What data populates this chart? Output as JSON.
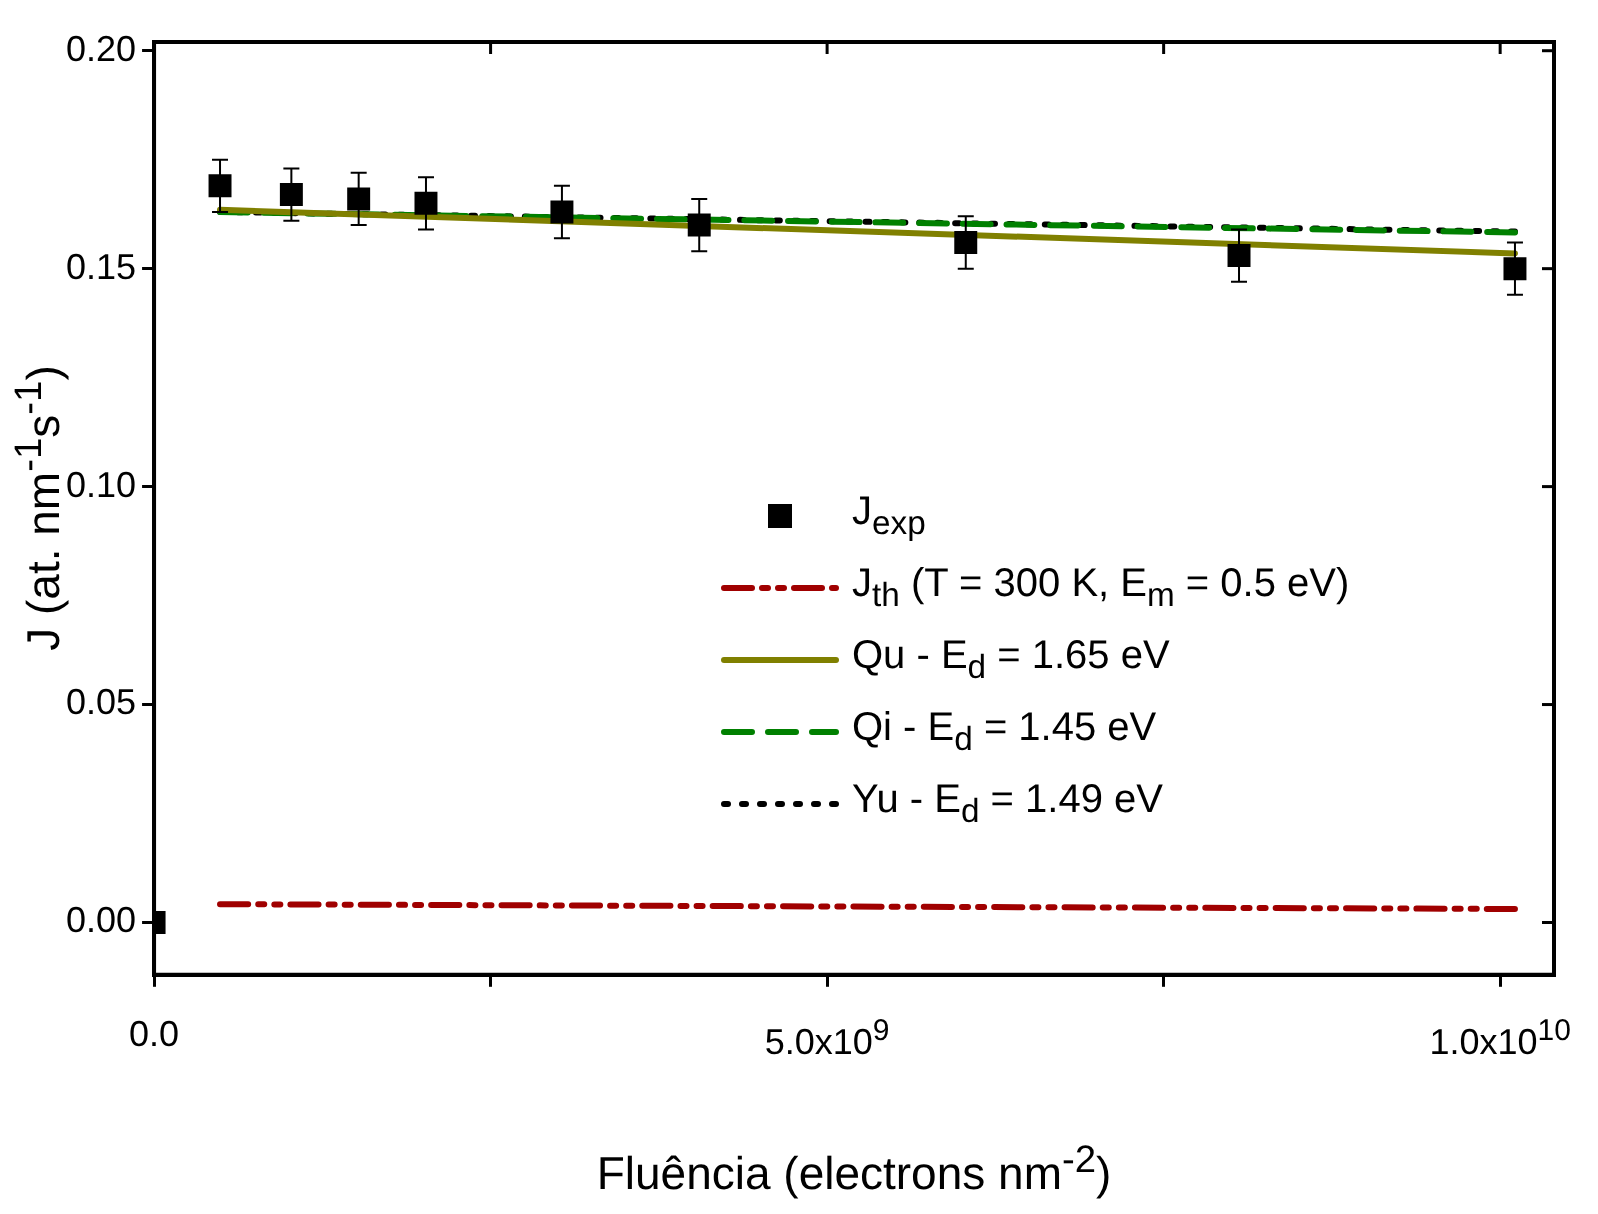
{
  "chart_data": {
    "type": "line",
    "xlabel": "Fluência (electrons nm$^{-2}$)",
    "ylabel": "J (at. nm$^{-1}$s$^{-1}$)",
    "xlim": [
      0,
      10400000000
    ],
    "ylim": [
      -0.012,
      0.202
    ],
    "xticks": [
      {
        "value": 0,
        "label": "0.0"
      },
      {
        "value": 2500000000,
        "label": null
      },
      {
        "value": 5000000000,
        "label": "5.0x10$^{9}$"
      },
      {
        "value": 7500000000,
        "label": null
      },
      {
        "value": 10000000000,
        "label": "1.0x10$^{10}$"
      }
    ],
    "yticks": [
      {
        "value": 0,
        "label": "0.00"
      },
      {
        "value": 0.05,
        "label": "0.05"
      },
      {
        "value": 0.1,
        "label": "0.10"
      },
      {
        "value": 0.15,
        "label": "0.15"
      },
      {
        "value": 0.2,
        "label": "0.20"
      }
    ],
    "grid": false,
    "legend": "right",
    "series": [
      {
        "name": "J$_{exp}$",
        "type": "scatter",
        "marker": "square",
        "color": "#000000",
        "x": [
          0,
          490000000,
          1020000000,
          1520000000,
          2020000000,
          3030000000,
          4050000000,
          6030000000,
          8060000000,
          10110000000
        ],
        "values": [
          0,
          0.169,
          0.167,
          0.166,
          0.165,
          0.163,
          0.16,
          0.156,
          0.153,
          0.15
        ],
        "errors": [
          null,
          0.006,
          0.006,
          0.006,
          0.006,
          0.006,
          0.006,
          0.006,
          0.006,
          0.006
        ]
      },
      {
        "name": "J$_{th}$ (T = 300 K, E$_{m}$ = 0.5 eV)",
        "type": "line",
        "line_style": "dashdot",
        "color": "#a00000",
        "x": [
          490000000,
          10110000000
        ],
        "values": [
          0.0042,
          0.0031
        ]
      },
      {
        "name": "Qu - E$_{d}$ = 1.65 eV",
        "type": "line",
        "line_style": "solid",
        "color": "#808000",
        "x": [
          490000000,
          10110000000
        ],
        "values": [
          0.1635,
          0.1535
        ]
      },
      {
        "name": "Qi - E$_{d}$ = 1.45 eV",
        "type": "line",
        "line_style": "dashed",
        "color": "#008000",
        "x": [
          490000000,
          10110000000
        ],
        "values": [
          0.163,
          0.1583
        ]
      },
      {
        "name": "Yu - E$_{d}$ = 1.49 eV",
        "type": "line",
        "line_style": "dotted",
        "color": "#000000",
        "x": [
          490000000,
          10110000000
        ],
        "values": [
          0.163,
          0.1585
        ]
      }
    ]
  }
}
